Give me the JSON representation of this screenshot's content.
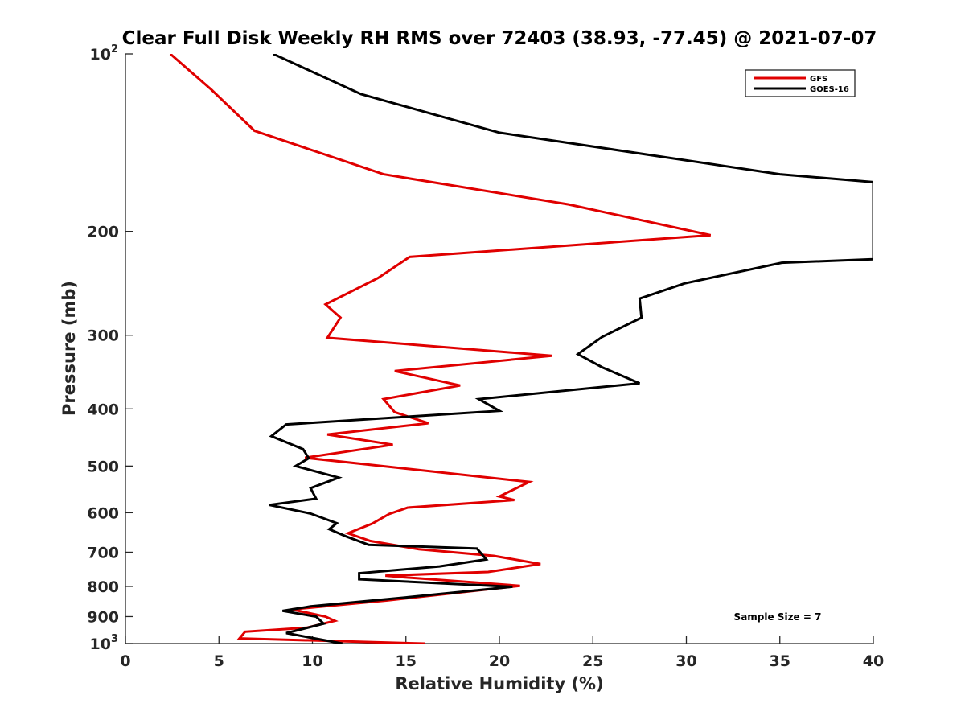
{
  "chart_data": {
    "type": "line",
    "title": "Clear Full Disk Weekly RH RMS over 72403 (38.93, -77.45) @ 2021-07-07",
    "xlabel": "Relative Humidity (%)",
    "ylabel": "Pressure (mb)",
    "xlim": [
      0,
      40
    ],
    "ylim": [
      100,
      1000
    ],
    "y_scale": "log",
    "y_reversed": true,
    "grid": false,
    "x_ticks": [
      {
        "value": 0,
        "label": "0"
      },
      {
        "value": 5,
        "label": "5"
      },
      {
        "value": 10,
        "label": "10"
      },
      {
        "value": 15,
        "label": "15"
      },
      {
        "value": 20,
        "label": "20"
      },
      {
        "value": 25,
        "label": "25"
      },
      {
        "value": 30,
        "label": "30"
      },
      {
        "value": 35,
        "label": "35"
      },
      {
        "value": 40,
        "label": "40"
      }
    ],
    "y_ticks": [
      {
        "value": 100,
        "base": "10",
        "exp": "2"
      },
      {
        "value": 200,
        "label": "200"
      },
      {
        "value": 300,
        "label": "300"
      },
      {
        "value": 400,
        "label": "400"
      },
      {
        "value": 500,
        "label": "500"
      },
      {
        "value": 600,
        "label": "600"
      },
      {
        "value": 700,
        "label": "700"
      },
      {
        "value": 800,
        "label": "800"
      },
      {
        "value": 900,
        "label": "900"
      },
      {
        "value": 1000,
        "base": "10",
        "exp": "3"
      }
    ],
    "legend_position": "top-right",
    "annotation": "Sample Size = 7",
    "series": [
      {
        "name": "GFS",
        "color": "#e00000",
        "points": [
          [
            2.4,
            100
          ],
          [
            4.6,
            115
          ],
          [
            6.9,
            135
          ],
          [
            13.8,
            160
          ],
          [
            23.7,
            180
          ],
          [
            31.3,
            203
          ],
          [
            15.2,
            221
          ],
          [
            13.5,
            240
          ],
          [
            10.7,
            266
          ],
          [
            11.5,
            280
          ],
          [
            10.8,
            303
          ],
          [
            22.8,
            325
          ],
          [
            14.4,
            345
          ],
          [
            17.9,
            365
          ],
          [
            13.8,
            385
          ],
          [
            14.4,
            405
          ],
          [
            16.2,
            423
          ],
          [
            10.8,
            442
          ],
          [
            14.3,
            460
          ],
          [
            9.6,
            484
          ],
          [
            21.6,
            532
          ],
          [
            20.0,
            563
          ],
          [
            20.8,
            571
          ],
          [
            15.1,
            588
          ],
          [
            14.1,
            603
          ],
          [
            13.2,
            626
          ],
          [
            11.9,
            650
          ],
          [
            13.1,
            670
          ],
          [
            15.7,
            692
          ],
          [
            19.7,
            710
          ],
          [
            22.2,
            733
          ],
          [
            19.4,
            756
          ],
          [
            13.9,
            767
          ],
          [
            14.9,
            772
          ],
          [
            21.1,
            798
          ],
          [
            14.0,
            845
          ],
          [
            8.9,
            875
          ],
          [
            10.7,
            900
          ],
          [
            11.2,
            915
          ],
          [
            9.7,
            940
          ],
          [
            6.4,
            955
          ],
          [
            6.1,
            980
          ],
          [
            16.0,
            1000
          ]
        ]
      },
      {
        "name": "GOES-16",
        "color": "#000000",
        "points": [
          [
            7.9,
            100
          ],
          [
            12.6,
            117
          ],
          [
            20.0,
            136
          ],
          [
            35.0,
            160
          ],
          [
            40.0,
            165
          ],
          [
            40.0,
            223
          ],
          [
            35.1,
            226
          ],
          [
            29.9,
            245
          ],
          [
            27.5,
            260
          ],
          [
            27.6,
            280
          ],
          [
            25.5,
            302
          ],
          [
            24.2,
            323
          ],
          [
            25.5,
            340
          ],
          [
            27.5,
            362
          ],
          [
            18.9,
            385
          ],
          [
            20.0,
            403
          ],
          [
            8.6,
            425
          ],
          [
            7.8,
            445
          ],
          [
            9.5,
            468
          ],
          [
            9.8,
            485
          ],
          [
            9.1,
            500
          ],
          [
            11.4,
            523
          ],
          [
            9.9,
            545
          ],
          [
            10.2,
            568
          ],
          [
            7.7,
            582
          ],
          [
            9.9,
            602
          ],
          [
            11.3,
            625
          ],
          [
            10.9,
            640
          ],
          [
            11.8,
            658
          ],
          [
            13.0,
            680
          ],
          [
            18.8,
            690
          ],
          [
            19.3,
            720
          ],
          [
            16.8,
            740
          ],
          [
            12.5,
            760
          ],
          [
            12.5,
            778
          ],
          [
            20.7,
            801
          ],
          [
            15.0,
            835
          ],
          [
            9.9,
            865
          ],
          [
            8.4,
            880
          ],
          [
            10.2,
            900
          ],
          [
            10.6,
            925
          ],
          [
            8.6,
            960
          ],
          [
            11.6,
            1000
          ]
        ]
      }
    ]
  }
}
